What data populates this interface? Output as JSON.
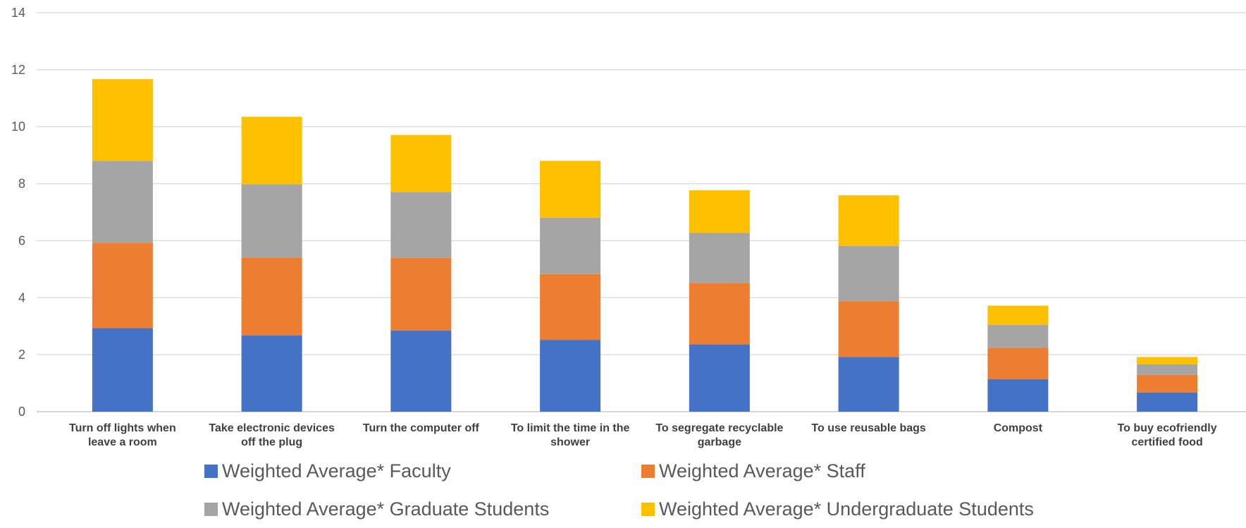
{
  "chart_data": {
    "type": "bar",
    "stacked": true,
    "categories": [
      [
        "Turn off lights when",
        "leave a room"
      ],
      [
        "Take electronic devices",
        "off the plug"
      ],
      [
        "Turn the computer off"
      ],
      [
        "To limit the time in the",
        "shower"
      ],
      [
        "To segregate recyclable",
        "garbage"
      ],
      [
        "To use reusable bags"
      ],
      [
        "Compost"
      ],
      [
        "To buy ecofriendly",
        "certified food"
      ]
    ],
    "series": [
      {
        "name": "Weighted Average* Faculty",
        "color": "#4472C4",
        "values": [
          2.93,
          2.68,
          2.85,
          2.52,
          2.36,
          1.92,
          1.14,
          0.67
        ]
      },
      {
        "name": "Weighted Average* Staff",
        "color": "#ED7D31",
        "values": [
          3.0,
          2.73,
          2.55,
          2.31,
          2.16,
          1.96,
          1.1,
          0.62
        ]
      },
      {
        "name": "Weighted Average* Graduate Students",
        "color": "#A5A5A5",
        "values": [
          2.87,
          2.57,
          2.31,
          1.98,
          1.75,
          1.94,
          0.81,
          0.37
        ]
      },
      {
        "name": "Weighted Average* Undergraduate Students",
        "color": "#FFC000",
        "values": [
          2.87,
          2.37,
          2.0,
          1.99,
          1.5,
          1.77,
          0.67,
          0.26
        ]
      }
    ],
    "ylim": [
      0,
      14
    ],
    "yticks": [
      0,
      2,
      4,
      6,
      8,
      10,
      12,
      14
    ],
    "grid": true,
    "legend_position": "bottom",
    "title": "",
    "xlabel": "",
    "ylabel": ""
  }
}
